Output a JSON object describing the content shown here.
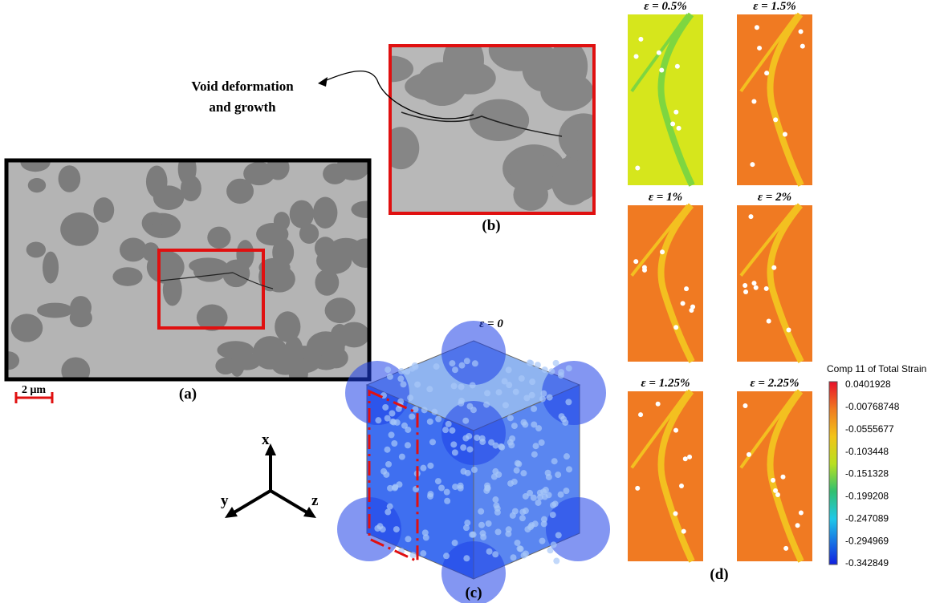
{
  "panel_a": {
    "label": "(a)",
    "scale_bar": "2 μm"
  },
  "panel_b": {
    "label": "(b)",
    "annotation": [
      "Void deformation",
      "and growth"
    ]
  },
  "panel_c": {
    "label": "(c)",
    "strain": "ε = 0",
    "axes": {
      "x": "x",
      "y": "y",
      "z": "z"
    }
  },
  "panel_d": {
    "label": "(d)",
    "maps": [
      "ε = 0.5%",
      "ε = 1.5%",
      "ε = 1%",
      "ε = 2%",
      "ε = 1.25%",
      "ε = 2.25%"
    ],
    "colorbar": {
      "title": "Comp 11 of Total Strain",
      "ticks": [
        "0.0401928",
        "-0.00768748",
        "-0.0555677",
        "-0.103448",
        "-0.151328",
        "-0.199208",
        "-0.247089",
        "-0.294969",
        "-0.342849"
      ]
    }
  }
}
